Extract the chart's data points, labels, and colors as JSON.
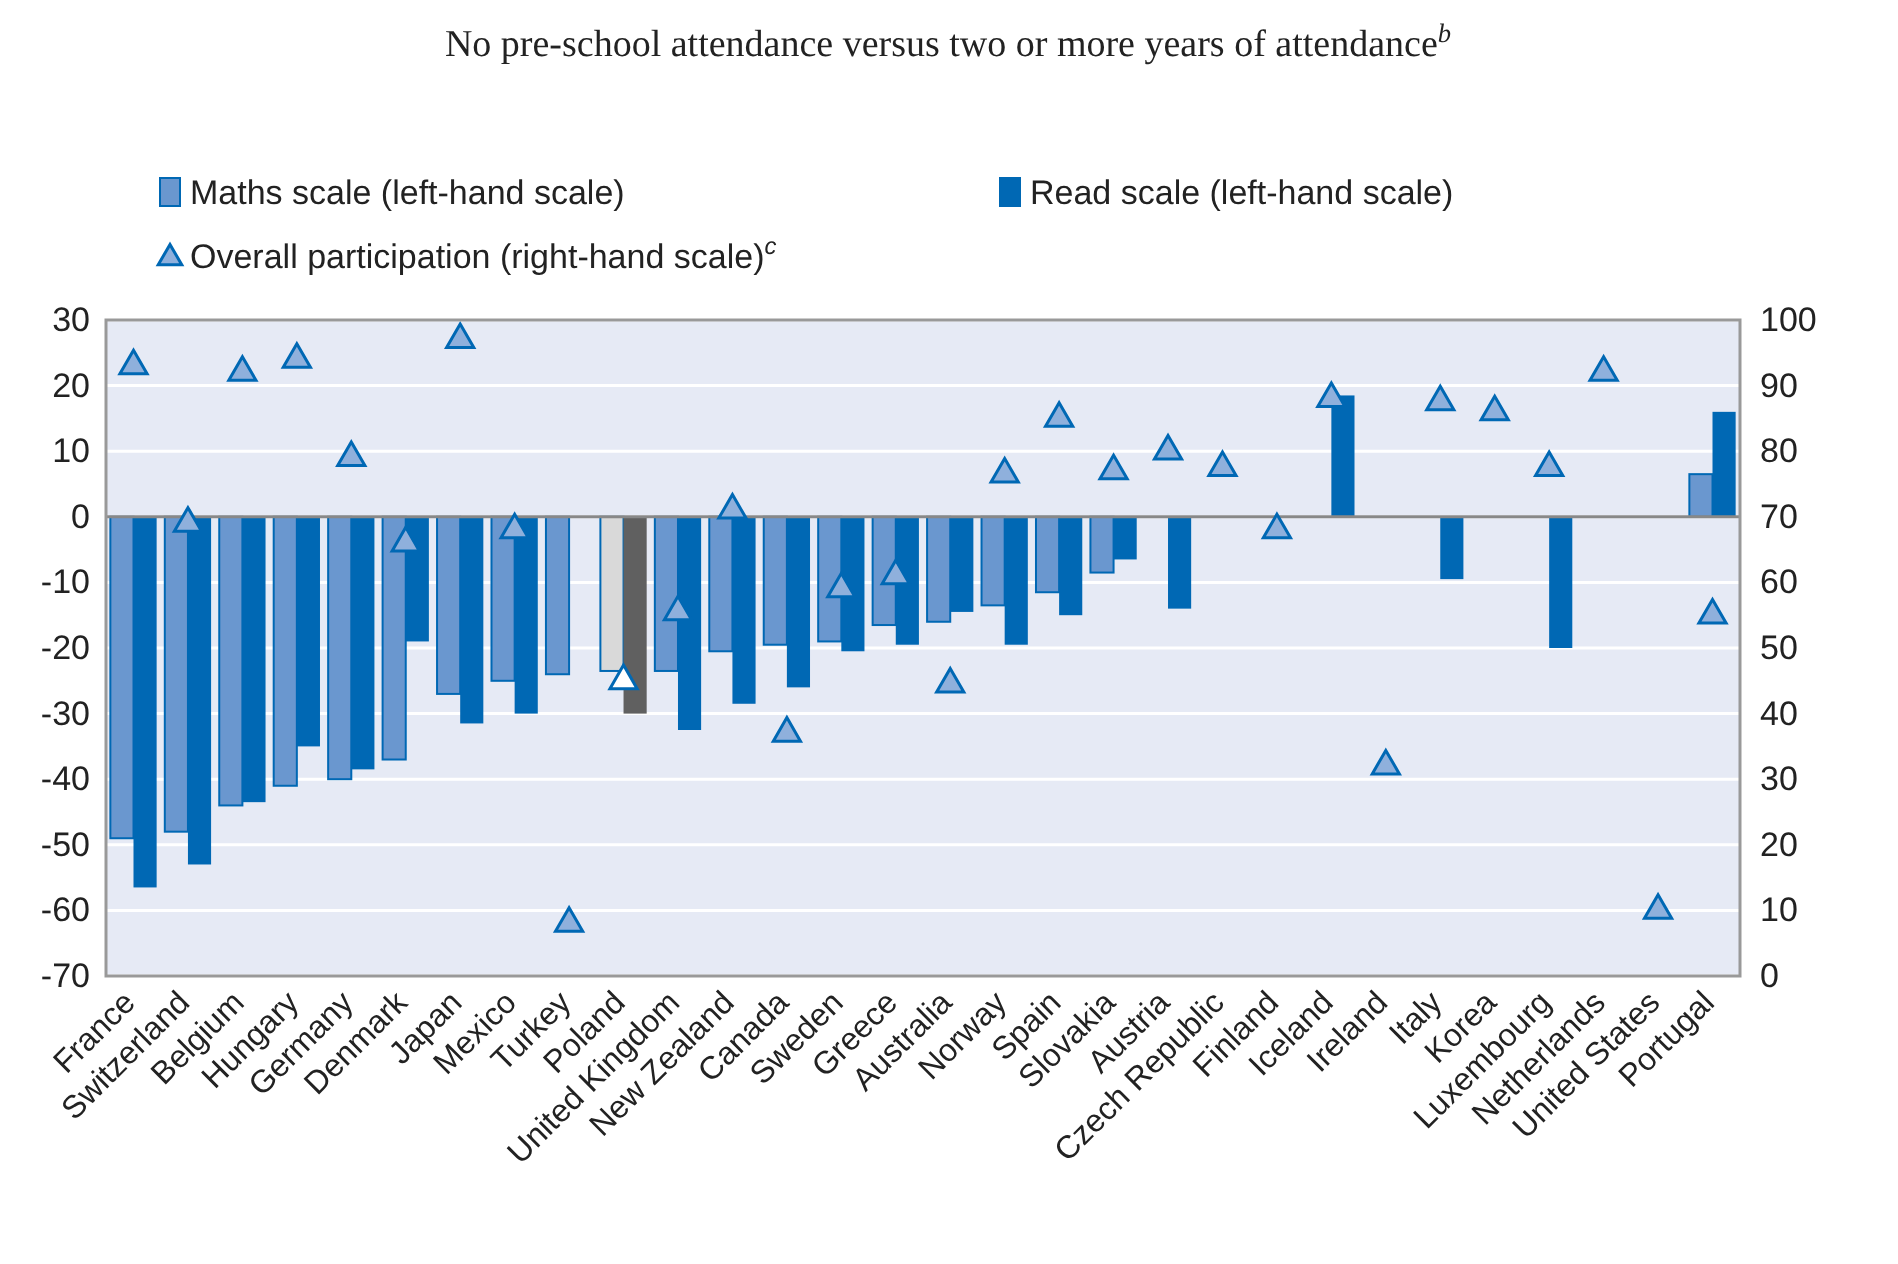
{
  "chart_data": {
    "type": "bar",
    "title": "No pre-school attendance versus two or more years of attendance$^{b}$",
    "categories": [
      "France",
      "Switzerland",
      "Belgium",
      "Hungary",
      "Germany",
      "Denmark",
      "Japan",
      "Mexico",
      "Turkey",
      "Poland",
      "United Kingdom",
      "New Zealand",
      "Canada",
      "Sweden",
      "Greece",
      "Australia",
      "Norway",
      "Spain",
      "Slovakia",
      "Austria",
      "Czech Republic",
      "Finland",
      "Iceland",
      "Ireland",
      "Italy",
      "Korea",
      "Luxembourg",
      "Netherlands",
      "United States",
      "Portugal"
    ],
    "series": [
      {
        "name": "Maths scale (left-hand scale)",
        "color": "#6a97cf",
        "colors": [
          "#6a97cf",
          "#6a97cf",
          "#6a97cf",
          "#6a97cf",
          "#6a97cf",
          "#6a97cf",
          "#6a97cf",
          "#6a97cf",
          "#6a97cf",
          "#d9d9d9",
          "#6a97cf",
          "#6a97cf",
          "#6a97cf",
          "#6a97cf",
          "#6a97cf",
          "#6a97cf",
          "#6a97cf",
          "#6a97cf",
          "#6a97cf",
          null,
          null,
          null,
          null,
          null,
          null,
          null,
          null,
          null,
          null,
          "#6a97cf"
        ],
        "values": [
          -49,
          -48,
          -44,
          -41,
          -40,
          -37,
          -27,
          -25,
          -24,
          -23.5,
          -23.5,
          -20.5,
          -19.5,
          -19,
          -16.5,
          -16,
          -13.5,
          -11.5,
          -8.5,
          null,
          null,
          null,
          null,
          null,
          null,
          null,
          null,
          null,
          null,
          6.5
        ]
      },
      {
        "name": "Read scale (left-hand scale)",
        "color": "#0068b4",
        "colors": [
          "#0068b4",
          "#0068b4",
          "#0068b4",
          "#0068b4",
          "#0068b4",
          "#0068b4",
          "#0068b4",
          "#0068b4",
          null,
          "#606060",
          "#0068b4",
          "#0068b4",
          "#0068b4",
          "#0068b4",
          "#0068b4",
          "#0068b4",
          "#0068b4",
          "#0068b4",
          "#0068b4",
          "#0068b4",
          null,
          null,
          "#0068b4",
          null,
          "#0068b4",
          null,
          "#0068b4",
          null,
          null,
          "#0068b4"
        ],
        "values": [
          -56.5,
          -53,
          -43.5,
          -35,
          -38.5,
          -19,
          -31.5,
          -30,
          null,
          -30,
          -32.5,
          -28.5,
          -26,
          -20.5,
          -19.5,
          -14.5,
          -19.5,
          -15,
          -6.5,
          -14,
          null,
          null,
          18.5,
          null,
          -9.5,
          null,
          -20,
          null,
          null,
          16
        ]
      },
      {
        "name": "Overall participation (right-hand scale)$^{c}$",
        "type": "scatter",
        "axis": "y2",
        "color": "#8fb0dc",
        "colors": [
          "#8fb0dc",
          "#8fb0dc",
          "#8fb0dc",
          "#8fb0dc",
          "#8fb0dc",
          "#8fb0dc",
          "#8fb0dc",
          "#8fb0dc",
          "#8fb0dc",
          "#ffffff",
          "#8fb0dc",
          "#8fb0dc",
          "#8fb0dc",
          "#8fb0dc",
          "#8fb0dc",
          "#8fb0dc",
          "#8fb0dc",
          "#8fb0dc",
          "#8fb0dc",
          "#8fb0dc",
          "#8fb0dc",
          "#8fb0dc",
          "#8fb0dc",
          "#8fb0dc",
          "#8fb0dc",
          "#8fb0dc",
          "#8fb0dc",
          "#8fb0dc",
          "#8fb0dc",
          "#8fb0dc"
        ],
        "values": [
          93,
          69,
          92,
          94,
          79,
          66,
          97,
          68,
          8,
          45,
          55.5,
          71,
          37,
          59,
          61,
          44.5,
          76.5,
          85,
          77,
          80,
          77.5,
          68,
          88,
          32,
          87.5,
          86,
          77.5,
          92,
          10,
          55
        ]
      }
    ],
    "ylim": [
      -70,
      30
    ],
    "yticks": [
      -70,
      -60,
      -50,
      -40,
      -30,
      -20,
      -10,
      0,
      10,
      20,
      30
    ],
    "y2lim": [
      0,
      100
    ],
    "y2ticks": [
      0,
      10,
      20,
      30,
      40,
      50,
      60,
      70,
      80,
      90,
      100
    ],
    "grid": "y",
    "legend": "top left",
    "marker": "triangle"
  }
}
